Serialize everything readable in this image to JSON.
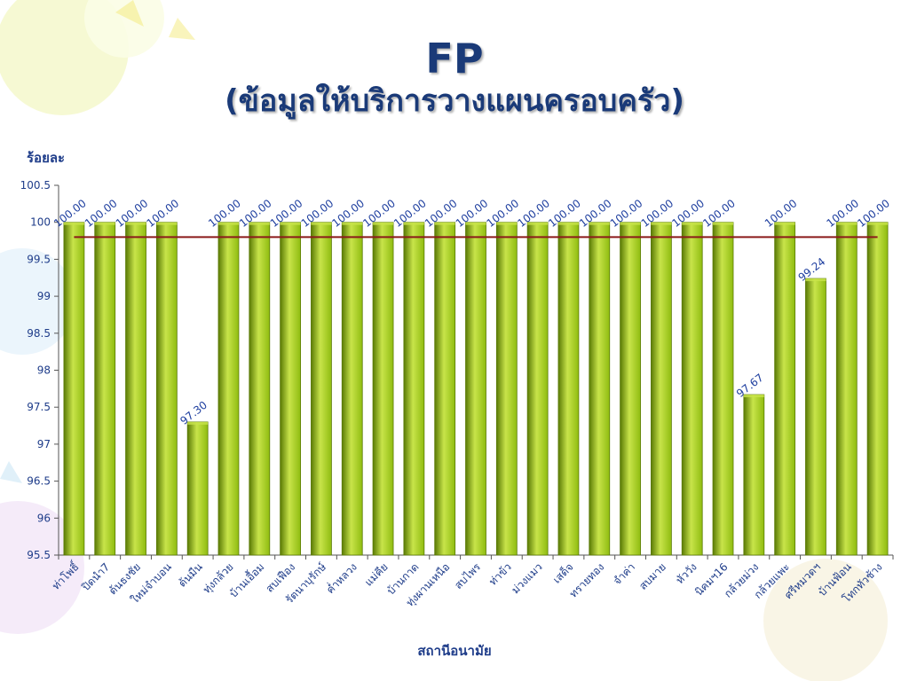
{
  "slide": {
    "title": "FP",
    "subtitle": "(ข้อมูลให้บริการวางแผนครอบครัว)"
  },
  "chart_data": {
    "type": "bar",
    "ylabel": "ร้อยละ",
    "xlabel": "สถานีอนามัย",
    "ylim": [
      95.5,
      100.5
    ],
    "yticks": [
      95.5,
      96,
      96.5,
      97,
      97.5,
      98,
      98.5,
      99,
      99.5,
      100,
      100.5
    ],
    "ytick_labels": [
      "95.5",
      "96",
      "96.5",
      "97",
      "97.5",
      "98",
      "98.5",
      "99",
      "99.5",
      "100",
      "100.5"
    ],
    "categories": [
      "ท่าโพธิ์",
      "ปิดนำ7",
      "ต้นธงชัย",
      "ใหม่จำบอน",
      "ต้นมืน",
      "ทุ่งกล้วย",
      "บ้านเอื้อม",
      "สบเฟือง",
      "รัตนาบุรักษ์",
      "ค่ำหลวง",
      "แม่คีย",
      "บ้านกาด",
      "ทุ่งผานเหนือ",
      "สบไพร",
      "ท่าข้ว",
      "ม่วงแมว",
      "เสด็จ",
      "ทรายทอง",
      "จำค่า",
      "สบมาย",
      "หัววัง",
      "นิคมฯ16",
      "กล้วยม่วง",
      "กล้วยแพะ",
      "ศรีหมวดฯ",
      "บ้านฟ้อน",
      "โทกทัวช้าง"
    ],
    "values": [
      100,
      100,
      100,
      100,
      97.3,
      100,
      100,
      100,
      100,
      100,
      100,
      100,
      100,
      100,
      100,
      100,
      100,
      100,
      100,
      100,
      100,
      100,
      97.67,
      100,
      99.24,
      100,
      100
    ],
    "value_labels": [
      "100.00",
      "100.00",
      "100.00",
      "100.00",
      "97.30",
      "100.00",
      "100.00",
      "100.00",
      "100.00",
      "100.00",
      "100.00",
      "100.00",
      "100.00",
      "100.00",
      "100.00",
      "100.00",
      "100.00",
      "100.00",
      "100.00",
      "100.00",
      "100.00",
      "100.00",
      "97.67",
      "100.00",
      "99.24",
      "100.00",
      "100.00"
    ],
    "reference_line": 99.8,
    "colors": {
      "bar": "#8fbc10",
      "bar_light": "#c8e44a",
      "bar_dark": "#5a7a05",
      "reference_line": "#8b1a1a",
      "value_label": "#2040a0",
      "axis_text": "#1f3d8a",
      "title": "#1a3a78"
    }
  }
}
